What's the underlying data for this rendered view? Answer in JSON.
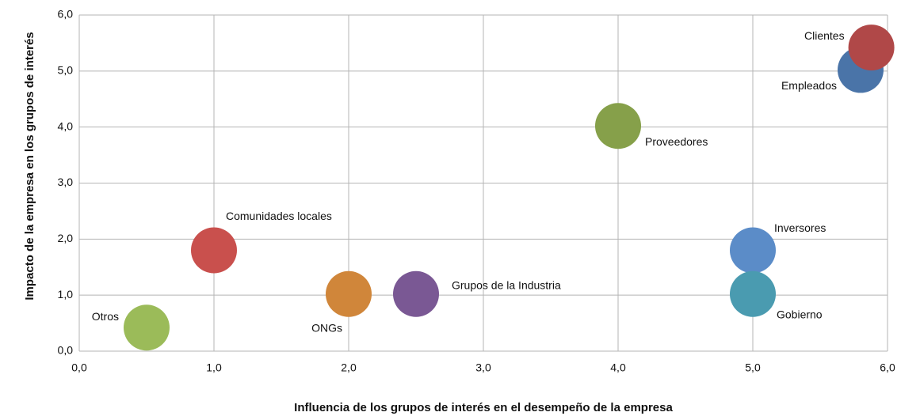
{
  "chart_data": {
    "type": "scatter",
    "xlabel": "Influencia de los grupos de interés en el desempeño de la empresa",
    "ylabel": "Impacto de la empresa en los grupos de interés",
    "xlim": [
      0,
      6
    ],
    "ylim": [
      0,
      6
    ],
    "xticks": [
      {
        "value": 0,
        "label": "0,0"
      },
      {
        "value": 1,
        "label": "1,0"
      },
      {
        "value": 2,
        "label": "2,0"
      },
      {
        "value": 3,
        "label": "3,0"
      },
      {
        "value": 4,
        "label": "4,0"
      },
      {
        "value": 5,
        "label": "5,0"
      },
      {
        "value": 6,
        "label": "6,0"
      }
    ],
    "yticks": [
      {
        "value": 0,
        "label": "0,0"
      },
      {
        "value": 1,
        "label": "1,0"
      },
      {
        "value": 2,
        "label": "2,0"
      },
      {
        "value": 3,
        "label": "3,0"
      },
      {
        "value": 4,
        "label": "4,0"
      },
      {
        "value": 5,
        "label": "5,0"
      },
      {
        "value": 6,
        "label": "6,0"
      }
    ],
    "grid": true,
    "series": [
      {
        "name": "Otros",
        "color": "#9bbb59",
        "x": [
          0.5
        ],
        "values": [
          0.42
        ]
      },
      {
        "name": "Comunidades locales",
        "color": "#c9504d",
        "x": [
          1.0
        ],
        "values": [
          1.8
        ]
      },
      {
        "name": "ONGs",
        "color": "#d0863a",
        "x": [
          2.0
        ],
        "values": [
          1.02
        ]
      },
      {
        "name": "Grupos de la Industria",
        "color": "#7a5894",
        "x": [
          2.5
        ],
        "values": [
          1.02
        ]
      },
      {
        "name": "Proveedores",
        "color": "#86a04a",
        "x": [
          4.0
        ],
        "values": [
          4.02
        ]
      },
      {
        "name": "Inversores",
        "color": "#5b8cc8",
        "x": [
          5.0
        ],
        "values": [
          1.8
        ]
      },
      {
        "name": "Gobierno",
        "color": "#4a9bb0",
        "x": [
          5.0
        ],
        "values": [
          1.02
        ]
      },
      {
        "name": "Empleados",
        "color": "#4a74a8",
        "x": [
          5.8
        ],
        "values": [
          5.02
        ]
      },
      {
        "name": "Clientes",
        "color": "#b04848",
        "x": [
          5.88
        ],
        "values": [
          5.42
        ]
      }
    ]
  }
}
